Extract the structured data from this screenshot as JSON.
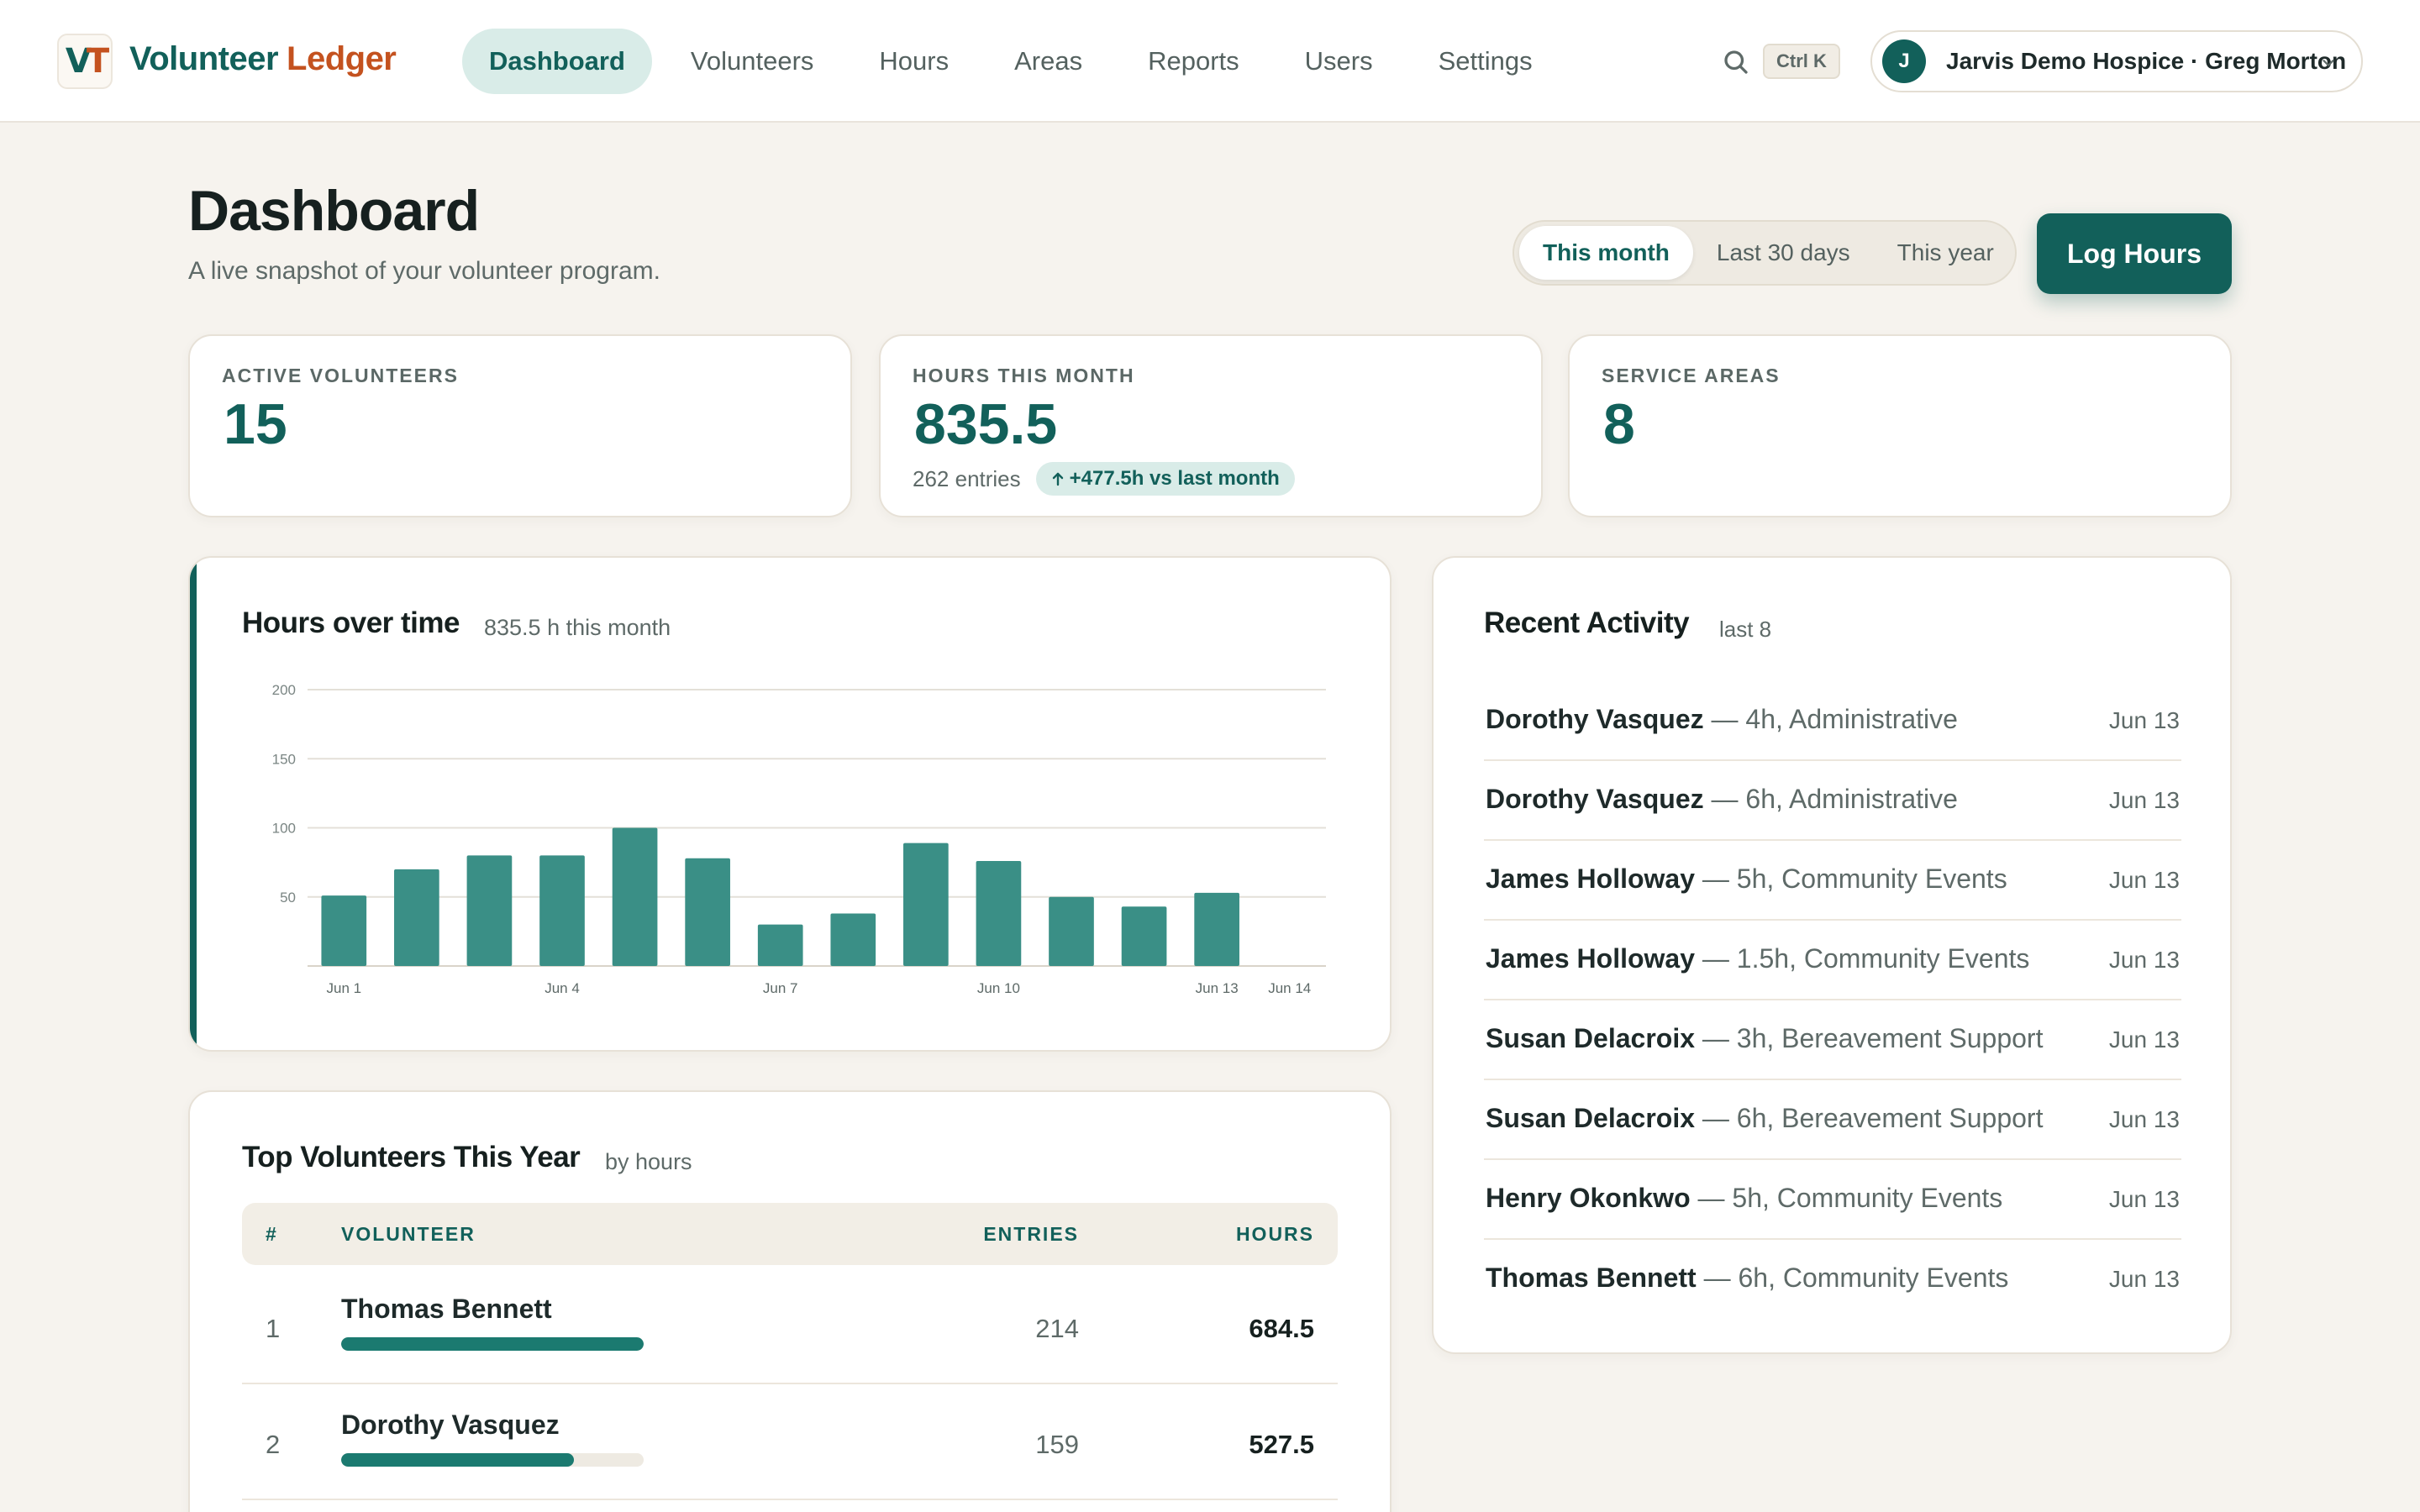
{
  "brand": {
    "logo_letters": "VT",
    "name_part1": "Volunteer",
    "name_part2": "Ledger"
  },
  "nav": {
    "items": [
      {
        "label": "Dashboard",
        "active": true
      },
      {
        "label": "Volunteers",
        "active": false
      },
      {
        "label": "Hours",
        "active": false
      },
      {
        "label": "Areas",
        "active": false
      },
      {
        "label": "Reports",
        "active": false
      },
      {
        "label": "Users",
        "active": false
      },
      {
        "label": "Settings",
        "active": false
      }
    ],
    "search_icon": "search-icon",
    "shortcut": "Ctrl K",
    "avatar_initial": "J",
    "org_user": "Jarvis Demo Hospice · Greg Morton"
  },
  "header": {
    "title": "Dashboard",
    "subtitle": "A live snapshot of your volunteer program.",
    "ranges": [
      {
        "label": "This month",
        "active": true
      },
      {
        "label": "Last 30 days",
        "active": false
      },
      {
        "label": "This year",
        "active": false
      }
    ],
    "log_button": "Log Hours"
  },
  "stats": [
    {
      "label": "ACTIVE VOLUNTEERS",
      "value": "15"
    },
    {
      "label": "HOURS THIS MONTH",
      "value": "835.5",
      "meta": "262 entries",
      "delta": "+477.5h vs last month"
    },
    {
      "label": "SERVICE AREAS",
      "value": "8"
    }
  ],
  "chart_section": {
    "title": "Hours over time",
    "subtitle": "835.5 h this month"
  },
  "chart_data": {
    "type": "bar",
    "categories": [
      "Jun 1",
      "Jun 2",
      "Jun 3",
      "Jun 4",
      "Jun 5",
      "Jun 6",
      "Jun 7",
      "Jun 8",
      "Jun 9",
      "Jun 10",
      "Jun 11",
      "Jun 12",
      "Jun 13",
      "Jun 14"
    ],
    "x_tick_labels": [
      "Jun 1",
      "Jun 4",
      "Jun 7",
      "Jun 10",
      "Jun 13",
      "Jun 14"
    ],
    "values": [
      51,
      70,
      80,
      80,
      100,
      78,
      30,
      38,
      89,
      76,
      50,
      43,
      53,
      0
    ],
    "yticks": [
      50,
      100,
      150,
      200
    ],
    "ylim": [
      0,
      200
    ],
    "grid": true,
    "color": "#3a8f86"
  },
  "top_volunteers": {
    "title": "Top Volunteers This Year",
    "subtitle": "by hours",
    "columns": {
      "rank": "#",
      "volunteer": "VOLUNTEER",
      "entries": "ENTRIES",
      "hours": "HOURS"
    },
    "rows": [
      {
        "rank": "1",
        "name": "Thomas Bennett",
        "entries": "214",
        "hours": "684.5",
        "share": 1.0
      },
      {
        "rank": "2",
        "name": "Dorothy Vasquez",
        "entries": "159",
        "hours": "527.5",
        "share": 0.77
      }
    ]
  },
  "activity": {
    "title": "Recent Activity",
    "subtitle": "last 8",
    "items": [
      {
        "name": "Dorothy Vasquez",
        "detail": " — 4h, Administrative",
        "date": "Jun 13"
      },
      {
        "name": "Dorothy Vasquez",
        "detail": " — 6h, Administrative",
        "date": "Jun 13"
      },
      {
        "name": "James Holloway",
        "detail": " — 5h, Community Events",
        "date": "Jun 13"
      },
      {
        "name": "James Holloway",
        "detail": " — 1.5h, Community Events",
        "date": "Jun 13"
      },
      {
        "name": "Susan Delacroix",
        "detail": " — 3h, Bereavement Support",
        "date": "Jun 13"
      },
      {
        "name": "Susan Delacroix",
        "detail": " — 6h, Bereavement Support",
        "date": "Jun 13"
      },
      {
        "name": "Henry Okonkwo",
        "detail": " — 5h, Community Events",
        "date": "Jun 13"
      },
      {
        "name": "Thomas Bennett",
        "detail": " — 6h, Community Events",
        "date": "Jun 13"
      }
    ]
  },
  "colors": {
    "accent": "#12605a",
    "brand_orange": "#c4521f",
    "bar": "#3a8f86",
    "badge_bg": "#d9ece8"
  }
}
